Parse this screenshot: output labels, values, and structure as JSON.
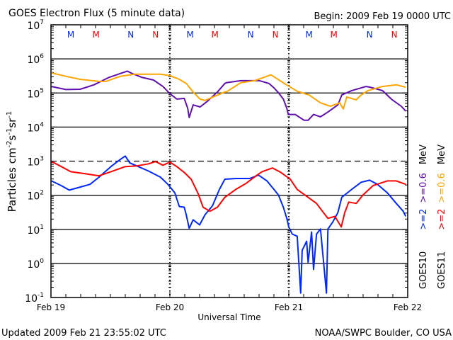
{
  "chart_data": {
    "type": "line",
    "title": "GOES Electron Flux (5 minute data)",
    "begin_label": "Begin: 2009 Feb 19 0000 UTC",
    "xlabel": "Universal Time",
    "ylabel": {
      "main": "Particles cm",
      "exp1": "-2",
      "s": "s",
      "exp2": "-1",
      "sr": "sr",
      "exp3": "-1"
    },
    "x_unit": "hours since 2009 Feb 19 00:00 UTC",
    "xlim": [
      0,
      72
    ],
    "x_tick_labels": [
      {
        "hour": 0,
        "label": "Feb 19"
      },
      {
        "hour": 24,
        "label": "Feb 20"
      },
      {
        "hour": 48,
        "label": "Feb 21"
      },
      {
        "hour": 72,
        "label": "Feb 22"
      }
    ],
    "y_scale": "log",
    "ylim_log10": [
      -1,
      7
    ],
    "y_tick_labels": [
      {
        "exp": "7"
      },
      {
        "exp": "6"
      },
      {
        "exp": "5"
      },
      {
        "exp": "4"
      },
      {
        "exp": "3"
      },
      {
        "exp": "2"
      },
      {
        "exp": "1"
      },
      {
        "exp": "0"
      },
      {
        "exp": "-1"
      }
    ],
    "y_tick_base": "10",
    "grid_log10": [
      6,
      5,
      4,
      2,
      1,
      0
    ],
    "threshold_log10": 3,
    "legend": [
      {
        "satellite": "GOES10",
        "entries": [
          {
            "text": ">=2",
            "color": "#0028ff"
          },
          {
            "text": ">=0.6",
            "color": "#6010b0"
          }
        ],
        "unit": "MeV"
      },
      {
        "satellite": "GOES11",
        "entries": [
          {
            "text": ">=2",
            "color": "#ff0000"
          },
          {
            "text": ">=0.6",
            "color": "#ffa500"
          }
        ],
        "unit": "MeV"
      }
    ],
    "markers": [
      {
        "hour": 4.0,
        "label": "M",
        "color": "#0028ff"
      },
      {
        "hour": 9.1,
        "label": "M",
        "color": "#ff0000"
      },
      {
        "hour": 16.1,
        "label": "N",
        "color": "#0028ff"
      },
      {
        "hour": 21.1,
        "label": "N",
        "color": "#ff0000"
      },
      {
        "hour": 28.1,
        "label": "M",
        "color": "#0028ff"
      },
      {
        "hour": 33.1,
        "label": "M",
        "color": "#ff0000"
      },
      {
        "hour": 40.3,
        "label": "N",
        "color": "#0028ff"
      },
      {
        "hour": 45.3,
        "label": "N",
        "color": "#ff0000"
      },
      {
        "hour": 52.1,
        "label": "M",
        "color": "#0028ff"
      },
      {
        "hour": 57.1,
        "label": "M",
        "color": "#ff0000"
      },
      {
        "hour": 64.3,
        "label": "N",
        "color": "#0028ff"
      },
      {
        "hour": 69.3,
        "label": "N",
        "color": "#ff0000"
      }
    ],
    "series": [
      {
        "name": "GOES10 >=0.6 MeV",
        "color": "#6010b0",
        "points_hour_log10flux": [
          [
            0.1,
            5.19
          ],
          [
            3.0,
            5.1
          ],
          [
            5.9,
            5.11
          ],
          [
            8.7,
            5.24
          ],
          [
            11.6,
            5.45
          ],
          [
            14.0,
            5.57
          ],
          [
            15.4,
            5.64
          ],
          [
            16.4,
            5.57
          ],
          [
            18.3,
            5.46
          ],
          [
            20.7,
            5.38
          ],
          [
            22.6,
            5.19
          ],
          [
            24.0,
            4.98
          ],
          [
            25.4,
            4.82
          ],
          [
            26.9,
            4.84
          ],
          [
            27.6,
            4.55
          ],
          [
            27.9,
            4.28
          ],
          [
            28.7,
            4.65
          ],
          [
            30.1,
            4.59
          ],
          [
            31.6,
            4.76
          ],
          [
            33.6,
            5.03
          ],
          [
            35.1,
            5.28
          ],
          [
            35.4,
            5.3
          ],
          [
            38.3,
            5.36
          ],
          [
            42.1,
            5.36
          ],
          [
            44.0,
            5.28
          ],
          [
            45.0,
            5.15
          ],
          [
            45.9,
            5.01
          ],
          [
            46.9,
            4.82
          ],
          [
            47.6,
            4.55
          ],
          [
            47.9,
            4.37
          ],
          [
            49.3,
            4.37
          ],
          [
            51.1,
            4.2
          ],
          [
            51.9,
            4.2
          ],
          [
            53.0,
            4.37
          ],
          [
            54.4,
            4.3
          ],
          [
            55.9,
            4.44
          ],
          [
            57.9,
            4.65
          ],
          [
            58.7,
            4.94
          ],
          [
            60.7,
            5.07
          ],
          [
            63.6,
            5.19
          ],
          [
            64.4,
            5.17
          ],
          [
            66.9,
            5.07
          ],
          [
            68.7,
            4.82
          ],
          [
            70.7,
            4.61
          ],
          [
            71.6,
            4.47
          ]
        ]
      },
      {
        "name": "GOES11 >=0.6 MeV",
        "color": "#ffa500",
        "points_hour_log10flux": [
          [
            0.1,
            5.59
          ],
          [
            3.0,
            5.49
          ],
          [
            5.9,
            5.4
          ],
          [
            9.7,
            5.34
          ],
          [
            11.1,
            5.34
          ],
          [
            14.0,
            5.49
          ],
          [
            16.9,
            5.55
          ],
          [
            19.7,
            5.55
          ],
          [
            22.1,
            5.55
          ],
          [
            24.0,
            5.51
          ],
          [
            25.9,
            5.4
          ],
          [
            27.3,
            5.28
          ],
          [
            28.7,
            5.03
          ],
          [
            30.1,
            4.82
          ],
          [
            31.1,
            4.78
          ],
          [
            33.0,
            4.9
          ],
          [
            35.1,
            5.03
          ],
          [
            35.4,
            5.03
          ],
          [
            38.3,
            5.3
          ],
          [
            41.1,
            5.36
          ],
          [
            44.4,
            5.53
          ],
          [
            47.3,
            5.26
          ],
          [
            49.7,
            5.05
          ],
          [
            52.1,
            4.94
          ],
          [
            54.4,
            4.71
          ],
          [
            56.4,
            4.61
          ],
          [
            58.3,
            4.71
          ],
          [
            59.0,
            4.53
          ],
          [
            59.7,
            4.88
          ],
          [
            61.6,
            4.8
          ],
          [
            62.6,
            4.94
          ],
          [
            64.0,
            5.07
          ],
          [
            66.9,
            5.19
          ],
          [
            69.7,
            5.24
          ],
          [
            71.6,
            5.17
          ]
        ]
      },
      {
        "name": "GOES10 >=2 MeV",
        "color": "#0028ff",
        "points_hour_log10flux": [
          [
            0.1,
            2.42
          ],
          [
            2.1,
            2.28
          ],
          [
            3.7,
            2.15
          ],
          [
            5.9,
            2.24
          ],
          [
            7.9,
            2.32
          ],
          [
            9.7,
            2.53
          ],
          [
            12.1,
            2.84
          ],
          [
            14.0,
            3.05
          ],
          [
            15.0,
            3.15
          ],
          [
            15.9,
            2.95
          ],
          [
            17.3,
            2.86
          ],
          [
            19.7,
            2.71
          ],
          [
            22.1,
            2.53
          ],
          [
            23.6,
            2.32
          ],
          [
            25.0,
            2.07
          ],
          [
            25.9,
            1.67
          ],
          [
            26.9,
            1.65
          ],
          [
            27.3,
            1.43
          ],
          [
            27.9,
            1.03
          ],
          [
            28.7,
            1.28
          ],
          [
            30.0,
            1.13
          ],
          [
            31.1,
            1.43
          ],
          [
            32.6,
            1.69
          ],
          [
            34.0,
            2.17
          ],
          [
            35.1,
            2.47
          ],
          [
            37.3,
            2.49
          ],
          [
            40.1,
            2.49
          ],
          [
            41.9,
            2.59
          ],
          [
            43.6,
            2.42
          ],
          [
            45.0,
            2.17
          ],
          [
            45.9,
            2.01
          ],
          [
            46.9,
            1.65
          ],
          [
            47.6,
            1.32
          ],
          [
            48.0,
            1.07
          ],
          [
            48.7,
            0.86
          ],
          [
            49.7,
            0.8
          ],
          [
            50.4,
            -0.87
          ],
          [
            50.7,
            0.38
          ],
          [
            51.6,
            0.65
          ],
          [
            51.9,
            0.03
          ],
          [
            52.6,
            0.92
          ],
          [
            53.0,
            -0.18
          ],
          [
            53.6,
            0.86
          ],
          [
            54.4,
            1.01
          ],
          [
            55.6,
            -0.87
          ],
          [
            55.9,
            1.01
          ],
          [
            56.9,
            1.22
          ],
          [
            57.9,
            1.49
          ],
          [
            58.7,
            1.94
          ],
          [
            60.7,
            2.17
          ],
          [
            62.6,
            2.38
          ],
          [
            64.3,
            2.44
          ],
          [
            65.9,
            2.32
          ],
          [
            67.9,
            2.07
          ],
          [
            69.7,
            1.76
          ],
          [
            71.1,
            1.53
          ],
          [
            71.6,
            1.38
          ]
        ]
      },
      {
        "name": "GOES11 >=2 MeV",
        "color": "#ff0000",
        "points_hour_log10flux": [
          [
            0.1,
            2.99
          ],
          [
            2.1,
            2.84
          ],
          [
            4.0,
            2.69
          ],
          [
            6.9,
            2.63
          ],
          [
            9.7,
            2.57
          ],
          [
            12.1,
            2.69
          ],
          [
            15.0,
            2.84
          ],
          [
            17.3,
            2.86
          ],
          [
            19.7,
            2.92
          ],
          [
            21.1,
            2.99
          ],
          [
            22.6,
            2.88
          ],
          [
            24.0,
            2.97
          ],
          [
            25.4,
            2.84
          ],
          [
            26.9,
            2.67
          ],
          [
            28.3,
            2.47
          ],
          [
            29.7,
            2.05
          ],
          [
            30.7,
            1.65
          ],
          [
            32.1,
            1.53
          ],
          [
            33.6,
            1.65
          ],
          [
            35.1,
            1.94
          ],
          [
            35.4,
            1.97
          ],
          [
            37.3,
            2.17
          ],
          [
            39.3,
            2.34
          ],
          [
            41.6,
            2.59
          ],
          [
            42.6,
            2.69
          ],
          [
            44.7,
            2.8
          ],
          [
            46.4,
            2.67
          ],
          [
            48.3,
            2.47
          ],
          [
            49.7,
            2.17
          ],
          [
            51.6,
            1.97
          ],
          [
            53.6,
            1.76
          ],
          [
            55.0,
            1.49
          ],
          [
            55.9,
            1.32
          ],
          [
            57.3,
            1.38
          ],
          [
            58.6,
            1.07
          ],
          [
            59.3,
            1.49
          ],
          [
            60.1,
            1.8
          ],
          [
            61.6,
            1.76
          ],
          [
            63.0,
            2.01
          ],
          [
            65.0,
            2.28
          ],
          [
            67.9,
            2.42
          ],
          [
            69.7,
            2.42
          ],
          [
            71.6,
            2.32
          ]
        ]
      }
    ]
  },
  "footer": {
    "updated": "Updated 2009 Feb 21 23:55:02 UTC",
    "credit": "NOAA/SWPC Boulder, CO USA"
  }
}
